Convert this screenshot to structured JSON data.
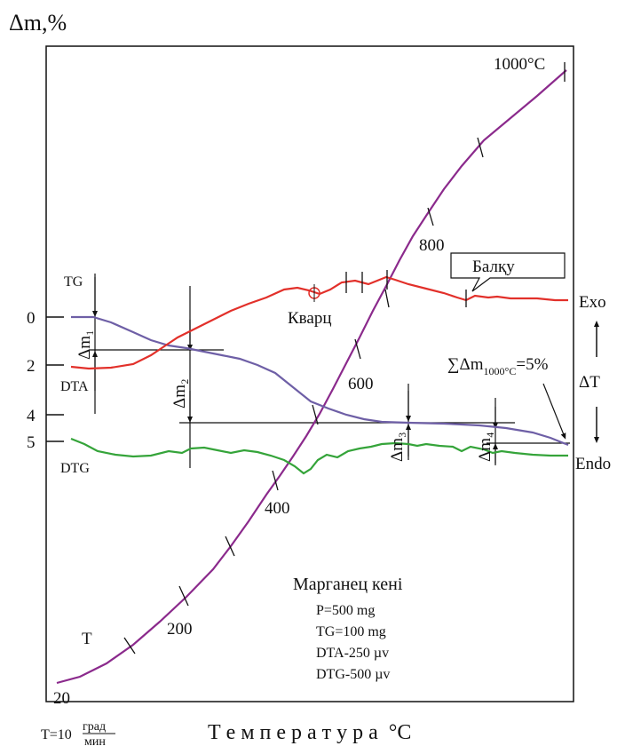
{
  "chart_data": {
    "type": "line",
    "ylabel": "Δm,%",
    "xlabel": "Т е м п е р а т у р а  °С",
    "heating_rate": {
      "prefix": "T=10",
      "numerator": "град",
      "denominator": "мин"
    },
    "tg_ticks": [
      {
        "label": "0",
        "value": 0
      },
      {
        "label": "2",
        "value": 2
      },
      {
        "label": "4",
        "value": 4
      },
      {
        "label": "5",
        "value": 5
      }
    ],
    "temperature_labels": [
      "20",
      "200",
      "400",
      "600",
      "800",
      "1000°С"
    ],
    "curve_labels": {
      "tg": "TG",
      "dta": "DTA",
      "dtg": "DTG",
      "t": "T"
    },
    "dta_axis": {
      "exo": "Exo",
      "endo": "Endo",
      "delta_t": "ΔT"
    },
    "annotations": {
      "quartz": "Кварц",
      "melting": "Балқу",
      "total_loss": {
        "prefix": "∑Δm",
        "sub": "1000°С",
        "suffix": "=5%"
      },
      "dm1": "Δm₁",
      "dm2": "Δm₂",
      "dm3": "Δm₃",
      "dm4": "Δm₄"
    },
    "sample": {
      "title": "Марганец кені",
      "params": [
        "P=500 mg",
        "TG=100 mg",
        "DTA-250 µv",
        "DTG-500 µv"
      ]
    },
    "series": [
      {
        "name": "T",
        "color": "#8b2a8c",
        "points": [
          [
            64,
            769
          ],
          [
            90,
            762
          ],
          [
            120,
            747
          ],
          [
            150,
            726
          ],
          [
            180,
            700
          ],
          [
            210,
            672
          ],
          [
            240,
            641
          ],
          [
            260,
            615
          ],
          [
            280,
            587
          ],
          [
            300,
            557
          ],
          [
            315,
            536
          ],
          [
            330,
            514
          ],
          [
            345,
            491
          ],
          [
            360,
            466
          ],
          [
            375,
            438
          ],
          [
            390,
            409
          ],
          [
            405,
            380
          ],
          [
            420,
            350
          ],
          [
            435,
            322
          ],
          [
            450,
            293
          ],
          [
            465,
            266
          ],
          [
            480,
            243
          ],
          [
            500,
            213
          ],
          [
            520,
            187
          ],
          [
            545,
            158
          ],
          [
            575,
            133
          ],
          [
            605,
            108
          ],
          [
            638,
            79
          ]
        ]
      },
      {
        "name": "TG",
        "color": "#6e5fa6",
        "points": [
          [
            80,
            357
          ],
          [
            105,
            357
          ],
          [
            125,
            363
          ],
          [
            150,
            374
          ],
          [
            170,
            383
          ],
          [
            190,
            389
          ],
          [
            210,
            392
          ],
          [
            230,
            396
          ],
          [
            250,
            400
          ],
          [
            270,
            404
          ],
          [
            290,
            411
          ],
          [
            310,
            420
          ],
          [
            330,
            436
          ],
          [
            350,
            452
          ],
          [
            370,
            460
          ],
          [
            390,
            467
          ],
          [
            410,
            472
          ],
          [
            430,
            475
          ],
          [
            460,
            476
          ],
          [
            500,
            477
          ],
          [
            540,
            479
          ],
          [
            570,
            482
          ],
          [
            600,
            487
          ],
          [
            620,
            493
          ],
          [
            640,
            501
          ]
        ]
      },
      {
        "name": "DTA",
        "color": "#e2302a",
        "points": [
          [
            80,
            413
          ],
          [
            100,
            415
          ],
          [
            125,
            414
          ],
          [
            150,
            410
          ],
          [
            170,
            400
          ],
          [
            185,
            390
          ],
          [
            200,
            380
          ],
          [
            220,
            370
          ],
          [
            240,
            360
          ],
          [
            260,
            350
          ],
          [
            280,
            342
          ],
          [
            300,
            335
          ],
          [
            320,
            326
          ],
          [
            335,
            324
          ],
          [
            348,
            327
          ],
          [
            360,
            331
          ],
          [
            372,
            326
          ],
          [
            385,
            318
          ],
          [
            400,
            316
          ],
          [
            415,
            320
          ],
          [
            425,
            316
          ],
          [
            435,
            312
          ],
          [
            445,
            315
          ],
          [
            460,
            320
          ],
          [
            480,
            325
          ],
          [
            500,
            330
          ],
          [
            515,
            335
          ],
          [
            525,
            338
          ],
          [
            535,
            333
          ],
          [
            550,
            335
          ],
          [
            560,
            334
          ],
          [
            575,
            336
          ],
          [
            590,
            336
          ],
          [
            605,
            336
          ],
          [
            625,
            338
          ],
          [
            640,
            338
          ]
        ]
      },
      {
        "name": "DTG",
        "color": "#35a43a",
        "points": [
          [
            80,
            494
          ],
          [
            95,
            500
          ],
          [
            110,
            508
          ],
          [
            130,
            512
          ],
          [
            150,
            514
          ],
          [
            170,
            513
          ],
          [
            190,
            508
          ],
          [
            205,
            510
          ],
          [
            215,
            505
          ],
          [
            230,
            504
          ],
          [
            245,
            507
          ],
          [
            260,
            510
          ],
          [
            275,
            507
          ],
          [
            290,
            509
          ],
          [
            305,
            513
          ],
          [
            320,
            518
          ],
          [
            332,
            525
          ],
          [
            342,
            533
          ],
          [
            350,
            528
          ],
          [
            358,
            518
          ],
          [
            368,
            512
          ],
          [
            380,
            515
          ],
          [
            392,
            508
          ],
          [
            405,
            505
          ],
          [
            418,
            503
          ],
          [
            430,
            500
          ],
          [
            445,
            499
          ],
          [
            460,
            500
          ],
          [
            470,
            502
          ],
          [
            480,
            500
          ],
          [
            495,
            502
          ],
          [
            510,
            503
          ],
          [
            520,
            508
          ],
          [
            530,
            503
          ],
          [
            545,
            506
          ],
          [
            555,
            510
          ],
          [
            565,
            508
          ],
          [
            580,
            510
          ],
          [
            600,
            512
          ],
          [
            620,
            513
          ],
          [
            640,
            513
          ]
        ]
      }
    ]
  }
}
